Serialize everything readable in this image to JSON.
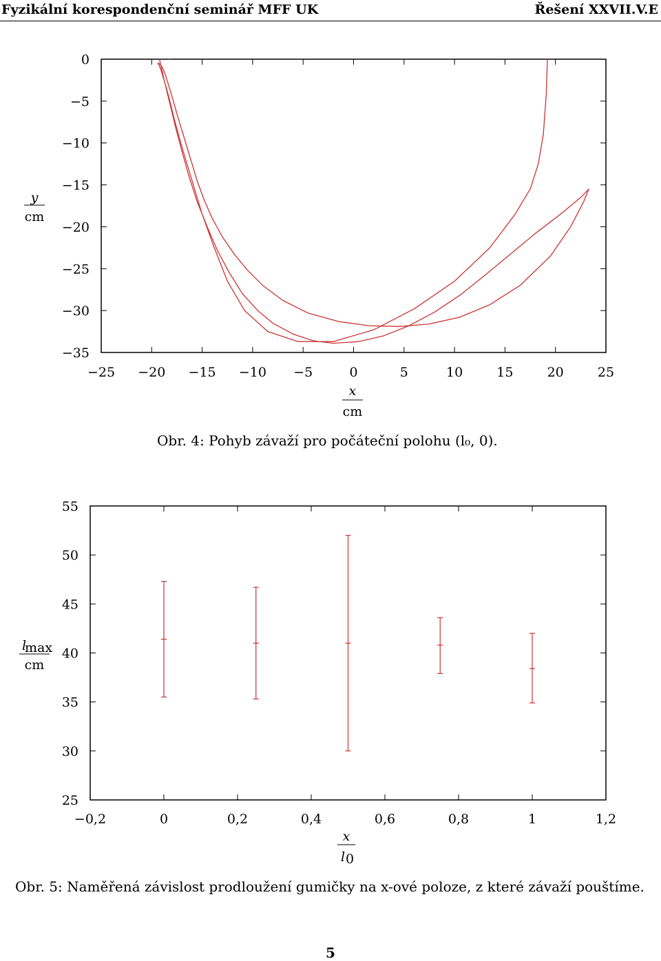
{
  "header": {
    "left": "Fyzikální korespondenční seminář MFF UK",
    "right": "Řešení XXVII.V.E"
  },
  "figure1": {
    "caption": "Obr. 4: Pohyb závaží pro počáteční polohu (l₀, 0)."
  },
  "figure2": {
    "caption": "Obr. 5: Naměřená závislost prodloužení gumičky na x-ové poloze, z které závaží pouštíme."
  },
  "page_number": "5",
  "chart_data": [
    {
      "type": "line",
      "xlabel_num": "x",
      "xlabel_den": "cm",
      "ylabel_num": "y",
      "ylabel_den": "cm",
      "xlim": [
        -25,
        25
      ],
      "ylim": [
        -35,
        0
      ],
      "x_ticks": [
        -25,
        -20,
        -15,
        -10,
        -5,
        0,
        5,
        10,
        15,
        20,
        25
      ],
      "y_ticks": [
        0,
        -5,
        -10,
        -15,
        -20,
        -25,
        -30,
        -35
      ],
      "x_tick_labels": [
        "−25",
        "−20",
        "−15",
        "−10",
        "−5",
        "0",
        "5",
        "10",
        "15",
        "20",
        "25"
      ],
      "y_tick_labels": [
        "0",
        "−5",
        "−10",
        "−15",
        "−20",
        "−25",
        "−30",
        "−35"
      ],
      "grid": false,
      "color": "#cc3333",
      "series": [
        {
          "x": [
            19.2,
            19.1,
            18.8,
            18.3,
            17.5,
            16.0,
            13.5,
            10.0,
            6.0,
            2.0,
            -2.0,
            -5.5,
            -8.5,
            -10.8,
            -12.5,
            -13.8,
            -15.0,
            -16.0,
            -17.0,
            -17.8,
            -18.3,
            -18.7,
            -19.0,
            -19.2,
            -19.35,
            -19.4,
            -19.3,
            -19.1,
            -18.85,
            -18.6,
            -18.3,
            -17.9,
            -17.5,
            -17.0,
            -16.5,
            -16.0,
            -15.5,
            -14.8,
            -14.0,
            -13.0,
            -11.8,
            -10.5,
            -9.0,
            -7.0,
            -4.5,
            -1.5,
            1.5,
            4.5,
            7.5,
            10.5,
            13.5,
            16.5,
            19.5,
            21.5,
            22.8,
            23.3,
            22.5,
            20.5,
            18.0,
            15.5,
            13.0,
            10.5,
            8.0,
            5.5,
            3.0,
            0.5,
            -2.0,
            -4.0,
            -6.0,
            -8.0,
            -9.5,
            -11.0,
            -12.3,
            -13.5,
            -14.5,
            -15.5,
            -16.3,
            -17.0,
            -17.6,
            -18.1,
            -18.5,
            -18.8,
            -19.0,
            -19.15,
            -19.2,
            -19.1,
            -18.9,
            -18.6,
            -18.2
          ],
          "y": [
            0,
            -4,
            -9,
            -12.5,
            -15.5,
            -18.5,
            -22.5,
            -26.5,
            -29.8,
            -32.3,
            -33.7,
            -33.7,
            -32.5,
            -30.0,
            -26.5,
            -22.5,
            -18.5,
            -14.5,
            -10.5,
            -7.0,
            -4.5,
            -2.8,
            -1.6,
            -0.9,
            -0.5,
            -0.45,
            -0.5,
            -0.7,
            -1.2,
            -2.0,
            -3.2,
            -4.8,
            -6.5,
            -8.5,
            -10.5,
            -12.5,
            -14.5,
            -16.8,
            -19.0,
            -21.2,
            -23.3,
            -25.2,
            -27.0,
            -28.8,
            -30.3,
            -31.3,
            -31.8,
            -31.9,
            -31.6,
            -30.8,
            -29.3,
            -27.0,
            -23.5,
            -20.0,
            -17.0,
            -15.5,
            -16.5,
            -18.5,
            -20.8,
            -23.3,
            -25.8,
            -28.2,
            -30.2,
            -31.8,
            -33.0,
            -33.7,
            -33.9,
            -33.6,
            -32.8,
            -31.5,
            -30.0,
            -28.0,
            -25.5,
            -22.8,
            -20.0,
            -17.0,
            -14.0,
            -11.0,
            -8.3,
            -5.8,
            -3.8,
            -2.3,
            -1.2,
            -0.5,
            -0.1,
            0.2,
            0.2,
            0.1,
            0
          ]
        }
      ]
    },
    {
      "type": "scatter",
      "xlabel_num": "x",
      "xlabel_den": "l0",
      "ylabel_num": "lmax",
      "ylabel_den": "cm",
      "xlim": [
        -0.2,
        1.2
      ],
      "ylim": [
        25,
        55
      ],
      "x_ticks": [
        -0.2,
        0,
        0.2,
        0.4,
        0.6,
        0.8,
        1,
        1.2
      ],
      "x_tick_labels": [
        "−0,2",
        "0",
        "0,2",
        "0,4",
        "0,6",
        "0,8",
        "1",
        "1,2"
      ],
      "y_ticks": [
        25,
        30,
        35,
        40,
        45,
        50,
        55
      ],
      "y_tick_labels": [
        "25",
        "30",
        "35",
        "40",
        "45",
        "50",
        "55"
      ],
      "grid": false,
      "color": "#cc3333",
      "points": [
        {
          "x": 0.0,
          "y": 41.4,
          "ymin": 35.5,
          "ymax": 47.3
        },
        {
          "x": 0.25,
          "y": 41.0,
          "ymin": 35.3,
          "ymax": 46.7
        },
        {
          "x": 0.5,
          "y": 41.0,
          "ymin": 30.0,
          "ymax": 52.0
        },
        {
          "x": 0.75,
          "y": 40.8,
          "ymin": 37.9,
          "ymax": 43.6
        },
        {
          "x": 1.0,
          "y": 38.4,
          "ymin": 34.9,
          "ymax": 42.0
        }
      ]
    }
  ]
}
